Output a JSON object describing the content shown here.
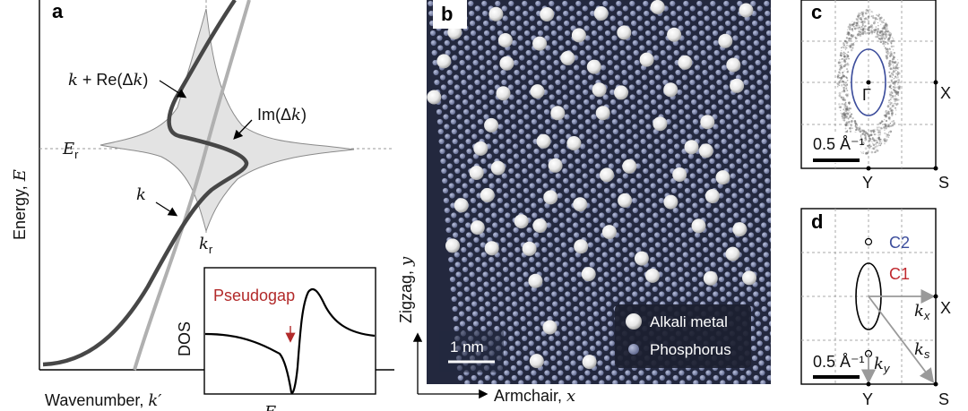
{
  "panel_a": {
    "letter": "a",
    "y_axis_label": "Energy, E",
    "x_axis_label": "Wavenumber, k′",
    "curve_labels": {
      "k_plus_re": "k + Re(Δk)",
      "im": "Im(Δk)",
      "k": "k"
    },
    "e_r": "Er",
    "k_r": "kr",
    "inset": {
      "y_label": "DOS",
      "annotation": "Pseudogap",
      "x_label_partial": "E"
    }
  },
  "panel_b": {
    "letter": "b",
    "scale_bar": "1 nm",
    "y_axis_label": "Zigzag, y",
    "x_axis_label": "Armchair, x",
    "legend": [
      {
        "label": "Alkali metal"
      },
      {
        "label": "Phosphorus"
      }
    ],
    "colors": {
      "background": "#23283e",
      "phosphorus": "#7f88ad",
      "alkali": "#e9e9e9"
    }
  },
  "panel_c": {
    "letter": "c",
    "point_gamma": "Γ",
    "point_x": "X",
    "point_y": "Y",
    "point_s": "S",
    "scale": "0.5 Å⁻¹"
  },
  "panel_d": {
    "letter": "d",
    "c2": "C2",
    "c1": "C1",
    "kx": "kx",
    "ky": "ky",
    "ks": "ks",
    "point_x": "X",
    "point_y": "Y",
    "point_s": "S",
    "scale": "0.5 Å⁻¹",
    "colors": {
      "c2": "#3d4e9c",
      "c1": "#c0282e"
    }
  }
}
